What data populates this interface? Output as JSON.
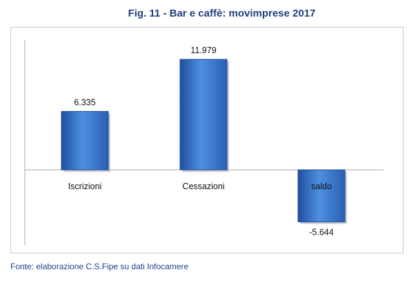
{
  "chart_data": {
    "type": "bar",
    "title": "Fig. 11 - Bar e caffè: movimprese 2017",
    "categories": [
      "Iscrizioni",
      "Cessazioni",
      "saldo"
    ],
    "values": [
      6335,
      11979,
      -5644
    ],
    "value_labels": [
      "6.335",
      "11.979",
      "-5.644"
    ],
    "ylim": [
      -7600,
      14000
    ],
    "grid": false,
    "legend": "none",
    "bar_color": "#3a78cc"
  },
  "source": "Fonte: elaborazione C.S.Fipe su dati Infocamere"
}
